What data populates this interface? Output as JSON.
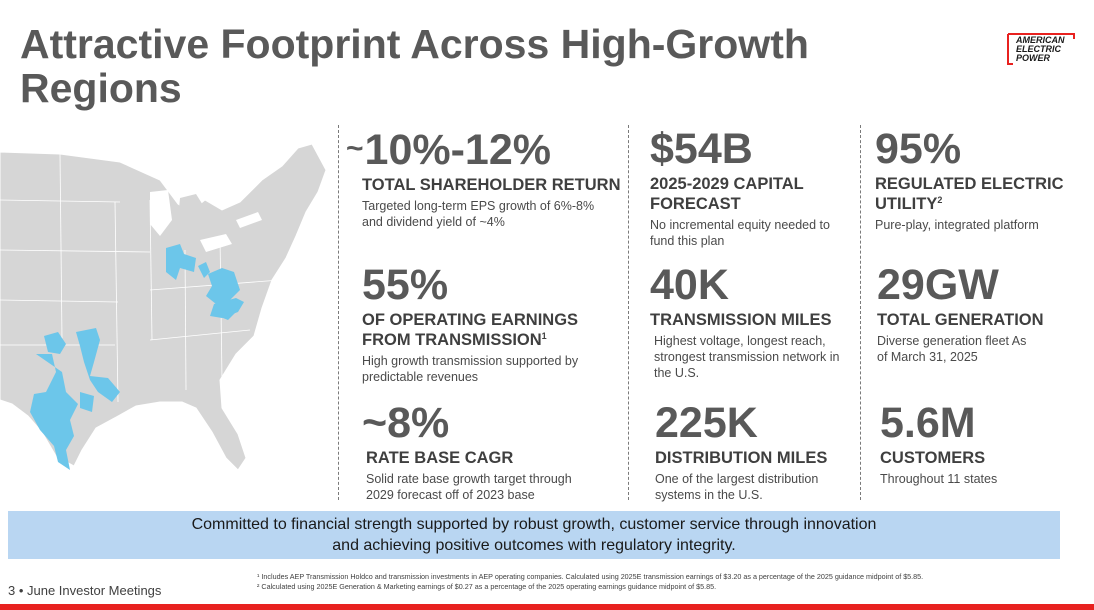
{
  "title": "Attractive Footprint Across High-Growth Regions",
  "logo": {
    "line1": "AMERICAN",
    "line2": "ELECTRIC",
    "line3": "POWER",
    "color": "#e8211f"
  },
  "stats": [
    {
      "value_prefix": "~",
      "value": "10%-12%",
      "heading": "TOTAL SHAREHOLDER RETURN",
      "heading_sup": "",
      "description": "Targeted long-term EPS growth of 6%-8% and dividend yield of ~4%"
    },
    {
      "value_prefix": "",
      "value": "$54B",
      "heading": "2025-2029 CAPITAL FORECAST",
      "heading_sup": "",
      "description": "No incremental equity needed to fund this plan"
    },
    {
      "value_prefix": "",
      "value": "95%",
      "heading": "REGULATED ELECTRIC UTILITY",
      "heading_sup": "2",
      "description": "Pure-play, integrated platform"
    },
    {
      "value_prefix": "",
      "value": "55%",
      "heading": "OF OPERATING EARNINGS FROM TRANSMISSION",
      "heading_sup": "1",
      "description": "High growth transmission supported by predictable revenues"
    },
    {
      "value_prefix": "",
      "value": "40K",
      "heading": "TRANSMISSION MILES",
      "heading_sup": "",
      "description": "Highest voltage, longest reach, strongest transmission network in the U.S."
    },
    {
      "value_prefix": "",
      "value": "29GW",
      "heading": "TOTAL GENERATION",
      "heading_sup": "",
      "description": "Diverse generation fleet As of March 31, 2025"
    },
    {
      "value_prefix": "",
      "value": "~8%",
      "heading": "RATE BASE CAGR",
      "heading_sup": "",
      "description": "Solid rate base growth target through 2029 forecast off of 2023 base"
    },
    {
      "value_prefix": "",
      "value": "225K",
      "heading": "DISTRIBUTION MILES",
      "heading_sup": "",
      "description": "One of the largest distribution systems in the U.S."
    },
    {
      "value_prefix": "",
      "value": "5.6M",
      "heading": "CUSTOMERS",
      "heading_sup": "",
      "description": "Throughout 11 states"
    }
  ],
  "banner": "Committed to financial strength supported by robust growth, customer service through innovation and achieving positive outcomes with regulatory integrity.",
  "footer": {
    "page_label": "3 • June Investor Meetings"
  },
  "footnotes": [
    "¹ Includes AEP Transmission Holdco and transmission investments in AEP operating companies.  Calculated using 2025E transmission earnings of $3.20 as a percentage of the 2025 guidance midpoint of $5.85.",
    "² Calculated using 2025E Generation & Marketing earnings of $0.27 as a percentage of the 2025 operating earnings guidance midpoint of $5.85."
  ],
  "colors": {
    "map_land": "#d6d6d6",
    "map_service_area": "#6cc6ea",
    "banner_bg": "#b9d6f2",
    "accent_red": "#e8211f"
  }
}
